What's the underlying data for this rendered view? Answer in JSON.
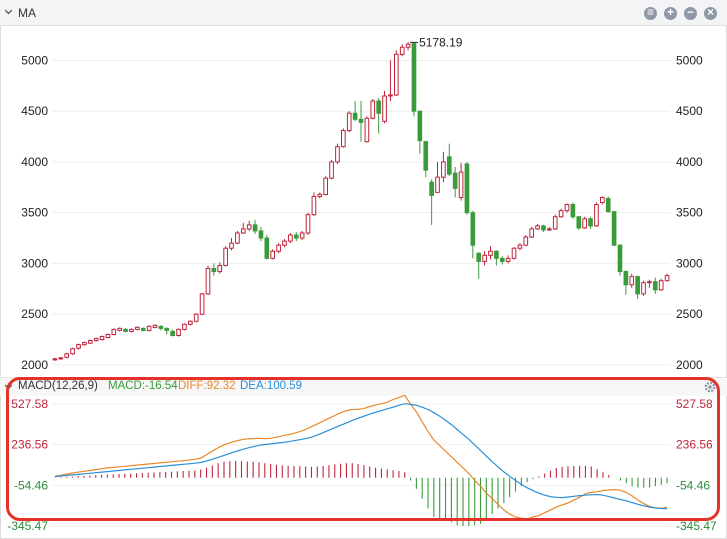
{
  "panel": {
    "title": "MA"
  },
  "macd_panel": {
    "title": "MACD(12,26,9)",
    "macd_label": "MACD:-16.54",
    "diff_label": "DIFF:92.32",
    "dea_label": "DEA:100.59"
  },
  "colors": {
    "up": "#c0243c",
    "down": "#3a9b3a",
    "diff": "#e8892b",
    "dea": "#2a8fd8",
    "highlight": "#e4322b"
  },
  "chart_data": [
    {
      "type": "candlestick",
      "title": "MA",
      "ylim": [
        1950,
        5300
      ],
      "yticks": [
        2000,
        2500,
        3000,
        3500,
        4000,
        4500,
        5000
      ],
      "annotations": [
        {
          "text": "5178.19",
          "value": 5178.19
        }
      ],
      "candles": [
        [
          2050,
          2060,
          2040,
          2070
        ],
        [
          2060,
          2070,
          2050,
          2075
        ],
        [
          2075,
          2110,
          2065,
          2120
        ],
        [
          2110,
          2160,
          2100,
          2170
        ],
        [
          2165,
          2200,
          2150,
          2210
        ],
        [
          2200,
          2220,
          2190,
          2230
        ],
        [
          2215,
          2240,
          2205,
          2250
        ],
        [
          2240,
          2260,
          2230,
          2270
        ],
        [
          2250,
          2280,
          2240,
          2290
        ],
        [
          2270,
          2300,
          2260,
          2310
        ],
        [
          2300,
          2350,
          2290,
          2360
        ],
        [
          2340,
          2360,
          2330,
          2370
        ],
        [
          2350,
          2330,
          2320,
          2365
        ],
        [
          2330,
          2350,
          2320,
          2360
        ],
        [
          2350,
          2370,
          2340,
          2380
        ],
        [
          2360,
          2340,
          2330,
          2370
        ],
        [
          2340,
          2380,
          2330,
          2390
        ],
        [
          2370,
          2390,
          2360,
          2400
        ],
        [
          2380,
          2360,
          2340,
          2390
        ],
        [
          2360,
          2340,
          2300,
          2370
        ],
        [
          2330,
          2290,
          2280,
          2350
        ],
        [
          2290,
          2350,
          2280,
          2360
        ],
        [
          2350,
          2400,
          2340,
          2410
        ],
        [
          2400,
          2430,
          2390,
          2440
        ],
        [
          2430,
          2500,
          2420,
          2510
        ],
        [
          2500,
          2700,
          2490,
          2710
        ],
        [
          2700,
          2950,
          2690,
          2980
        ],
        [
          2950,
          2920,
          2880,
          3000
        ],
        [
          2920,
          2980,
          2900,
          3010
        ],
        [
          2980,
          3150,
          2970,
          3170
        ],
        [
          3150,
          3200,
          3130,
          3250
        ],
        [
          3200,
          3300,
          3190,
          3320
        ],
        [
          3300,
          3340,
          3290,
          3400
        ],
        [
          3340,
          3380,
          3320,
          3420
        ],
        [
          3380,
          3320,
          3290,
          3430
        ],
        [
          3320,
          3250,
          3220,
          3360
        ],
        [
          3250,
          3050,
          3040,
          3280
        ],
        [
          3050,
          3120,
          3040,
          3140
        ],
        [
          3120,
          3180,
          3100,
          3200
        ],
        [
          3180,
          3220,
          3160,
          3240
        ],
        [
          3220,
          3280,
          3200,
          3300
        ],
        [
          3280,
          3250,
          3220,
          3310
        ],
        [
          3250,
          3300,
          3230,
          3320
        ],
        [
          3300,
          3480,
          3280,
          3500
        ],
        [
          3480,
          3660,
          3470,
          3700
        ],
        [
          3660,
          3680,
          3640,
          3700
        ],
        [
          3680,
          3840,
          3670,
          3860
        ],
        [
          3840,
          4000,
          3830,
          4020
        ],
        [
          4000,
          4150,
          3980,
          4180
        ],
        [
          4150,
          4310,
          4140,
          4330
        ],
        [
          4310,
          4480,
          4290,
          4500
        ],
        [
          4480,
          4420,
          4400,
          4600
        ],
        [
          4420,
          4390,
          4200,
          4600
        ],
        [
          4200,
          4430,
          4190,
          4450
        ],
        [
          4430,
          4600,
          4420,
          4620
        ],
        [
          4600,
          4480,
          4280,
          4630
        ],
        [
          4400,
          4650,
          4380,
          4700
        ],
        [
          4650,
          4660,
          4600,
          5000
        ],
        [
          4660,
          5060,
          4650,
          5100
        ],
        [
          5060,
          5130,
          5040,
          5160
        ],
        [
          5130,
          5160,
          5100,
          5180
        ],
        [
          5166,
          4500,
          4450,
          5178
        ],
        [
          4500,
          4210,
          4080,
          4500
        ],
        [
          4200,
          3920,
          3850,
          4210
        ],
        [
          3800,
          3670,
          3380,
          3830
        ],
        [
          3700,
          3850,
          3700,
          4000
        ],
        [
          3850,
          4000,
          3800,
          4100
        ],
        [
          4050,
          3880,
          3860,
          4180
        ],
        [
          3890,
          3740,
          3650,
          3950
        ],
        [
          3650,
          3900,
          3620,
          3990
        ],
        [
          3980,
          3500,
          3480,
          4000
        ],
        [
          3500,
          3180,
          3050,
          3520
        ],
        [
          3100,
          3020,
          2850,
          3110
        ],
        [
          3020,
          3080,
          2980,
          3120
        ],
        [
          3080,
          3120,
          3040,
          3170
        ],
        [
          3120,
          3050,
          2980,
          3130
        ],
        [
          3050,
          3020,
          2990,
          3070
        ],
        [
          3020,
          3050,
          3000,
          3080
        ],
        [
          3050,
          3150,
          3040,
          3160
        ],
        [
          3150,
          3180,
          3130,
          3200
        ],
        [
          3180,
          3260,
          3170,
          3280
        ],
        [
          3260,
          3340,
          3250,
          3360
        ],
        [
          3340,
          3370,
          3330,
          3390
        ],
        [
          3370,
          3330,
          3310,
          3380
        ],
        [
          3330,
          3340,
          3320,
          3360
        ],
        [
          3340,
          3460,
          3330,
          3480
        ],
        [
          3460,
          3520,
          3450,
          3540
        ],
        [
          3520,
          3580,
          3500,
          3590
        ],
        [
          3580,
          3460,
          3440,
          3600
        ],
        [
          3460,
          3350,
          3330,
          3470
        ],
        [
          3350,
          3440,
          3340,
          3460
        ],
        [
          3440,
          3370,
          3340,
          3460
        ],
        [
          3370,
          3580,
          3360,
          3600
        ],
        [
          3600,
          3650,
          3580,
          3660
        ],
        [
          3640,
          3510,
          3500,
          3660
        ],
        [
          3510,
          3180,
          3170,
          3520
        ],
        [
          3180,
          2920,
          2880,
          3190
        ],
        [
          2920,
          2790,
          2690,
          2930
        ],
        [
          2790,
          2870,
          2760,
          2900
        ],
        [
          2870,
          2700,
          2650,
          2880
        ],
        [
          2700,
          2810,
          2680,
          2830
        ],
        [
          2810,
          2820,
          2760,
          2840
        ],
        [
          2820,
          2740,
          2700,
          2860
        ],
        [
          2740,
          2830,
          2730,
          2850
        ],
        [
          2830,
          2880,
          2820,
          2900
        ]
      ]
    },
    {
      "type": "macd",
      "title": "MACD(12,26,9)",
      "ylim": [
        -345.47,
        527.58
      ],
      "yticks": [
        527.58,
        236.56,
        -54.46,
        -345.47
      ],
      "series": [
        {
          "name": "DIFF",
          "values": [
            10,
            18,
            26,
            34,
            40,
            46,
            52,
            58,
            64,
            70,
            74,
            78,
            82,
            86,
            90,
            94,
            98,
            102,
            106,
            110,
            114,
            118,
            122,
            126,
            132,
            140,
            165,
            190,
            215,
            235,
            250,
            262,
            272,
            278,
            280,
            282,
            280,
            282,
            290,
            300,
            308,
            318,
            330,
            345,
            365,
            385,
            405,
            425,
            445,
            465,
            480,
            488,
            490,
            495,
            510,
            520,
            530,
            540,
            560,
            575,
            590,
            527,
            470,
            400,
            330,
            270,
            230,
            190,
            150,
            110,
            70,
            30,
            -20,
            -60,
            -110,
            -150,
            -190,
            -230,
            -260,
            -280,
            -290,
            -295,
            -280,
            -270,
            -250,
            -230,
            -210,
            -195,
            -180,
            -160,
            -140,
            -115,
            -105,
            -100,
            -92,
            -88,
            -85,
            -90,
            -105,
            -130,
            -160,
            -185,
            -205,
            -215,
            -220,
            -210
          ]
        },
        {
          "name": "DEA",
          "values": [
            8,
            12,
            16,
            20,
            24,
            28,
            32,
            36,
            40,
            44,
            48,
            52,
            56,
            60,
            64,
            68,
            72,
            76,
            80,
            84,
            88,
            92,
            96,
            100,
            104,
            110,
            120,
            132,
            146,
            160,
            174,
            188,
            200,
            212,
            222,
            232,
            238,
            242,
            248,
            252,
            258,
            265,
            272,
            280,
            290,
            305,
            322,
            340,
            358,
            375,
            392,
            410,
            425,
            440,
            455,
            468,
            480,
            493,
            505,
            518,
            530,
            525,
            518,
            505,
            488,
            465,
            440,
            410,
            380,
            345,
            310,
            275,
            235,
            195,
            155,
            115,
            78,
            42,
            10,
            -20,
            -48,
            -72,
            -92,
            -110,
            -125,
            -135,
            -140,
            -142,
            -138,
            -133,
            -128,
            -125,
            -122,
            -120,
            -125,
            -135,
            -145,
            -155,
            -165,
            -178,
            -190,
            -200,
            -210,
            -217,
            -220,
            -222
          ]
        }
      ],
      "histogram": [
        2,
        4,
        6,
        8,
        12,
        14,
        16,
        18,
        20,
        22,
        24,
        26,
        28,
        30,
        32,
        34,
        36,
        38,
        40,
        42,
        44,
        46,
        48,
        50,
        52,
        58,
        72,
        88,
        104,
        115,
        118,
        120,
        118,
        116,
        114,
        110,
        104,
        98,
        92,
        88,
        86,
        84,
        82,
        80,
        78,
        80,
        84,
        90,
        96,
        100,
        104,
        104,
        98,
        90,
        80,
        72,
        66,
        60,
        54,
        48,
        40,
        -20,
        -80,
        -150,
        -220,
        -280,
        -300,
        -310,
        -320,
        -340,
        -345,
        -345,
        -340,
        -330,
        -300,
        -260,
        -220,
        -180,
        -140,
        -100,
        -60,
        -30,
        -10,
        10,
        30,
        50,
        70,
        78,
        82,
        84,
        86,
        84,
        80,
        60,
        40,
        20,
        0,
        -20,
        -40,
        -60,
        -70,
        -72,
        -70,
        -60,
        -50,
        -40
      ]
    }
  ]
}
